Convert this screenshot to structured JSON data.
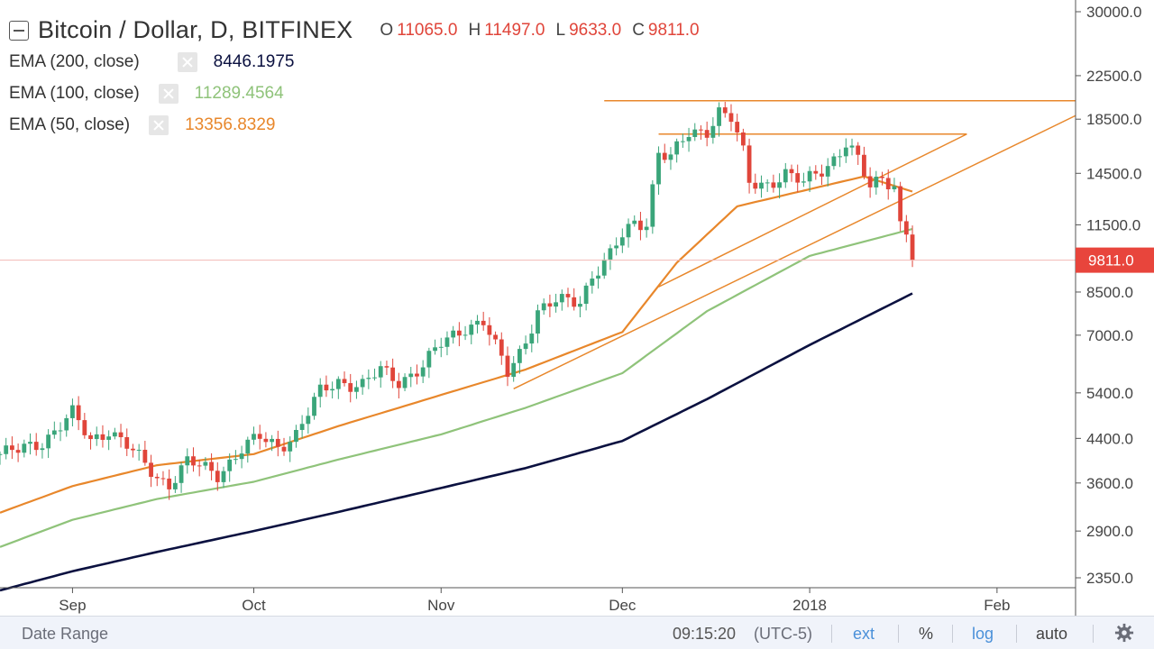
{
  "legend": {
    "symbol": "Bitcoin / Dollar, D, BITFINEX",
    "ohlc": [
      {
        "label": "O",
        "value": "11065.0"
      },
      {
        "label": "H",
        "value": "11497.0"
      },
      {
        "label": "L",
        "value": "9633.0"
      },
      {
        "label": "C",
        "value": "9811.0"
      }
    ],
    "indicators": [
      {
        "name": "EMA (200, close)",
        "value": "8446.1975",
        "color": "#0b1140"
      },
      {
        "name": "EMA (100, close)",
        "value": "11289.4564",
        "color": "#8fc37a"
      },
      {
        "name": "EMA (50, close)",
        "value": "13356.8329",
        "color": "#e8872b"
      }
    ]
  },
  "colors": {
    "up": "#3aa57a",
    "down": "#e0453a",
    "trendline": "#e8872b",
    "price_line": "#f2b8b5",
    "ema200": "#0b1140",
    "ema100": "#8fc37a",
    "ema50": "#e8872b",
    "badge": "#e8453c"
  },
  "bottom_bar": {
    "date_range": "Date Range",
    "time": "09:15:20",
    "timezone": "(UTC-5)",
    "ext": "ext",
    "percent": "%",
    "log": "log",
    "auto": "auto",
    "settings_icon": "gear-icon"
  },
  "chart_data": {
    "type": "candlestick",
    "title": "Bitcoin / Dollar, D, BITFINEX",
    "y_scale": "log",
    "ylim": [
      2200,
      31000
    ],
    "xlim": [
      "2017-08-20",
      "2018-02-14"
    ],
    "grid": false,
    "legend_placement": "top-left",
    "y_ticks": [
      30000,
      22500,
      18500,
      14500,
      11500,
      8500,
      7000,
      5400,
      4400,
      3600,
      2900,
      2350
    ],
    "y_tick_labels": [
      "30000.0",
      "22500.0",
      "18500.0",
      "14500.0",
      "11500.0",
      "8500.0",
      "7000.0",
      "5400.0",
      "4400.0",
      "3600.0",
      "2900.0",
      "2350.0"
    ],
    "x_ticks": [
      {
        "label": "Sep",
        "date": "2017-09-01"
      },
      {
        "label": "Oct",
        "date": "2017-10-01"
      },
      {
        "label": "Nov",
        "date": "2017-11-01"
      },
      {
        "label": "Dec",
        "date": "2017-12-01"
      },
      {
        "label": "2018",
        "date": "2018-01-01"
      },
      {
        "label": "Feb",
        "date": "2018-02-01"
      }
    ],
    "last_price": {
      "value": 9811.0,
      "label": "9811.0"
    },
    "key_points": [
      {
        "date": "2017-08-20",
        "close": 4100
      },
      {
        "date": "2017-08-23",
        "close": 4150
      },
      {
        "date": "2017-08-27",
        "close": 4350
      },
      {
        "date": "2017-09-01",
        "close": 4900
      },
      {
        "date": "2017-09-04",
        "close": 4350
      },
      {
        "date": "2017-09-07",
        "close": 4600
      },
      {
        "date": "2017-09-10",
        "close": 4250
      },
      {
        "date": "2017-09-13",
        "close": 3900
      },
      {
        "date": "2017-09-15",
        "close": 3700
      },
      {
        "date": "2017-09-17",
        "close": 3600
      },
      {
        "date": "2017-09-20",
        "close": 3950
      },
      {
        "date": "2017-09-25",
        "close": 3750
      },
      {
        "date": "2017-09-29",
        "close": 4200
      },
      {
        "date": "2017-10-02",
        "close": 4400
      },
      {
        "date": "2017-10-05",
        "close": 4250
      },
      {
        "date": "2017-10-08",
        "close": 4500
      },
      {
        "date": "2017-10-12",
        "close": 5400
      },
      {
        "date": "2017-10-15",
        "close": 5700
      },
      {
        "date": "2017-10-19",
        "close": 5600
      },
      {
        "date": "2017-10-22",
        "close": 5950
      },
      {
        "date": "2017-10-25",
        "close": 5700
      },
      {
        "date": "2017-10-29",
        "close": 6100
      },
      {
        "date": "2017-11-01",
        "close": 6700
      },
      {
        "date": "2017-11-05",
        "close": 7300
      },
      {
        "date": "2017-11-08",
        "close": 7450
      },
      {
        "date": "2017-11-10",
        "close": 6600
      },
      {
        "date": "2017-11-12",
        "close": 5900
      },
      {
        "date": "2017-11-14",
        "close": 6500
      },
      {
        "date": "2017-11-17",
        "close": 7800
      },
      {
        "date": "2017-11-20",
        "close": 8100
      },
      {
        "date": "2017-11-24",
        "close": 8200
      },
      {
        "date": "2017-11-26",
        "close": 9200
      },
      {
        "date": "2017-11-29",
        "close": 10000
      },
      {
        "date": "2017-12-01",
        "close": 10900
      },
      {
        "date": "2017-12-03",
        "close": 11600
      },
      {
        "date": "2017-12-05",
        "close": 11700
      },
      {
        "date": "2017-12-07",
        "close": 16000
      },
      {
        "date": "2017-12-09",
        "close": 15500
      },
      {
        "date": "2017-12-12",
        "close": 17300
      },
      {
        "date": "2017-12-15",
        "close": 17700
      },
      {
        "date": "2017-12-17",
        "close": 19200
      },
      {
        "date": "2017-12-19",
        "close": 18500
      },
      {
        "date": "2017-12-21",
        "close": 15800
      },
      {
        "date": "2017-12-22",
        "close": 13900
      },
      {
        "date": "2017-12-25",
        "close": 13900
      },
      {
        "date": "2017-12-28",
        "close": 14400
      },
      {
        "date": "2017-12-31",
        "close": 13800
      },
      {
        "date": "2018-01-02",
        "close": 14600
      },
      {
        "date": "2018-01-04",
        "close": 15100
      },
      {
        "date": "2018-01-07",
        "close": 16500
      },
      {
        "date": "2018-01-09",
        "close": 15300
      },
      {
        "date": "2018-01-11",
        "close": 13600
      },
      {
        "date": "2018-01-13",
        "close": 14400
      },
      {
        "date": "2018-01-15",
        "close": 13800
      },
      {
        "date": "2018-01-16",
        "close": 11500
      },
      {
        "date": "2018-01-17",
        "close": 11100
      },
      {
        "date": "2018-01-18",
        "close": 9811
      }
    ],
    "ema200": [
      {
        "date": "2017-08-20",
        "value": 2220
      },
      {
        "date": "2017-09-01",
        "value": 2420
      },
      {
        "date": "2017-09-15",
        "value": 2640
      },
      {
        "date": "2017-10-01",
        "value": 2900
      },
      {
        "date": "2017-10-15",
        "value": 3160
      },
      {
        "date": "2017-11-01",
        "value": 3520
      },
      {
        "date": "2017-11-15",
        "value": 3850
      },
      {
        "date": "2017-12-01",
        "value": 4350
      },
      {
        "date": "2017-12-15",
        "value": 5250
      },
      {
        "date": "2018-01-01",
        "value": 6700
      },
      {
        "date": "2018-01-18",
        "value": 8446.1975
      }
    ],
    "ema100": [
      {
        "date": "2017-08-20",
        "value": 2700
      },
      {
        "date": "2017-09-01",
        "value": 3050
      },
      {
        "date": "2017-09-15",
        "value": 3350
      },
      {
        "date": "2017-10-01",
        "value": 3620
      },
      {
        "date": "2017-10-15",
        "value": 4000
      },
      {
        "date": "2017-11-01",
        "value": 4480
      },
      {
        "date": "2017-11-15",
        "value": 5050
      },
      {
        "date": "2017-12-01",
        "value": 5900
      },
      {
        "date": "2017-12-15",
        "value": 7800
      },
      {
        "date": "2018-01-01",
        "value": 10000
      },
      {
        "date": "2018-01-18",
        "value": 11289.4564
      }
    ],
    "ema50": [
      {
        "date": "2017-08-20",
        "value": 3150
      },
      {
        "date": "2017-09-01",
        "value": 3550
      },
      {
        "date": "2017-09-15",
        "value": 3900
      },
      {
        "date": "2017-10-01",
        "value": 4100
      },
      {
        "date": "2017-10-15",
        "value": 4650
      },
      {
        "date": "2017-11-01",
        "value": 5350
      },
      {
        "date": "2017-11-15",
        "value": 6000
      },
      {
        "date": "2017-12-01",
        "value": 7100
      },
      {
        "date": "2017-12-10",
        "value": 9700
      },
      {
        "date": "2017-12-20",
        "value": 12500
      },
      {
        "date": "2018-01-01",
        "value": 13500
      },
      {
        "date": "2018-01-10",
        "value": 14300
      },
      {
        "date": "2018-01-18",
        "value": 13356.8329
      }
    ],
    "trendlines": [
      {
        "name": "resistance-high",
        "from": {
          "date": "2017-11-28",
          "price": 20100
        },
        "to": {
          "date": "2018-02-14",
          "price": 20100
        }
      },
      {
        "name": "triangle-top",
        "from": {
          "date": "2017-12-07",
          "price": 17300
        },
        "to": {
          "date": "2018-01-27",
          "price": 17300
        }
      },
      {
        "name": "triangle-bottom",
        "from": {
          "date": "2017-12-07",
          "price": 8700
        },
        "to": {
          "date": "2018-01-27",
          "price": 17300
        }
      },
      {
        "name": "long-support",
        "from": {
          "date": "2017-11-13",
          "price": 5500
        },
        "to": {
          "date": "2018-02-14",
          "price": 18800
        }
      }
    ]
  }
}
